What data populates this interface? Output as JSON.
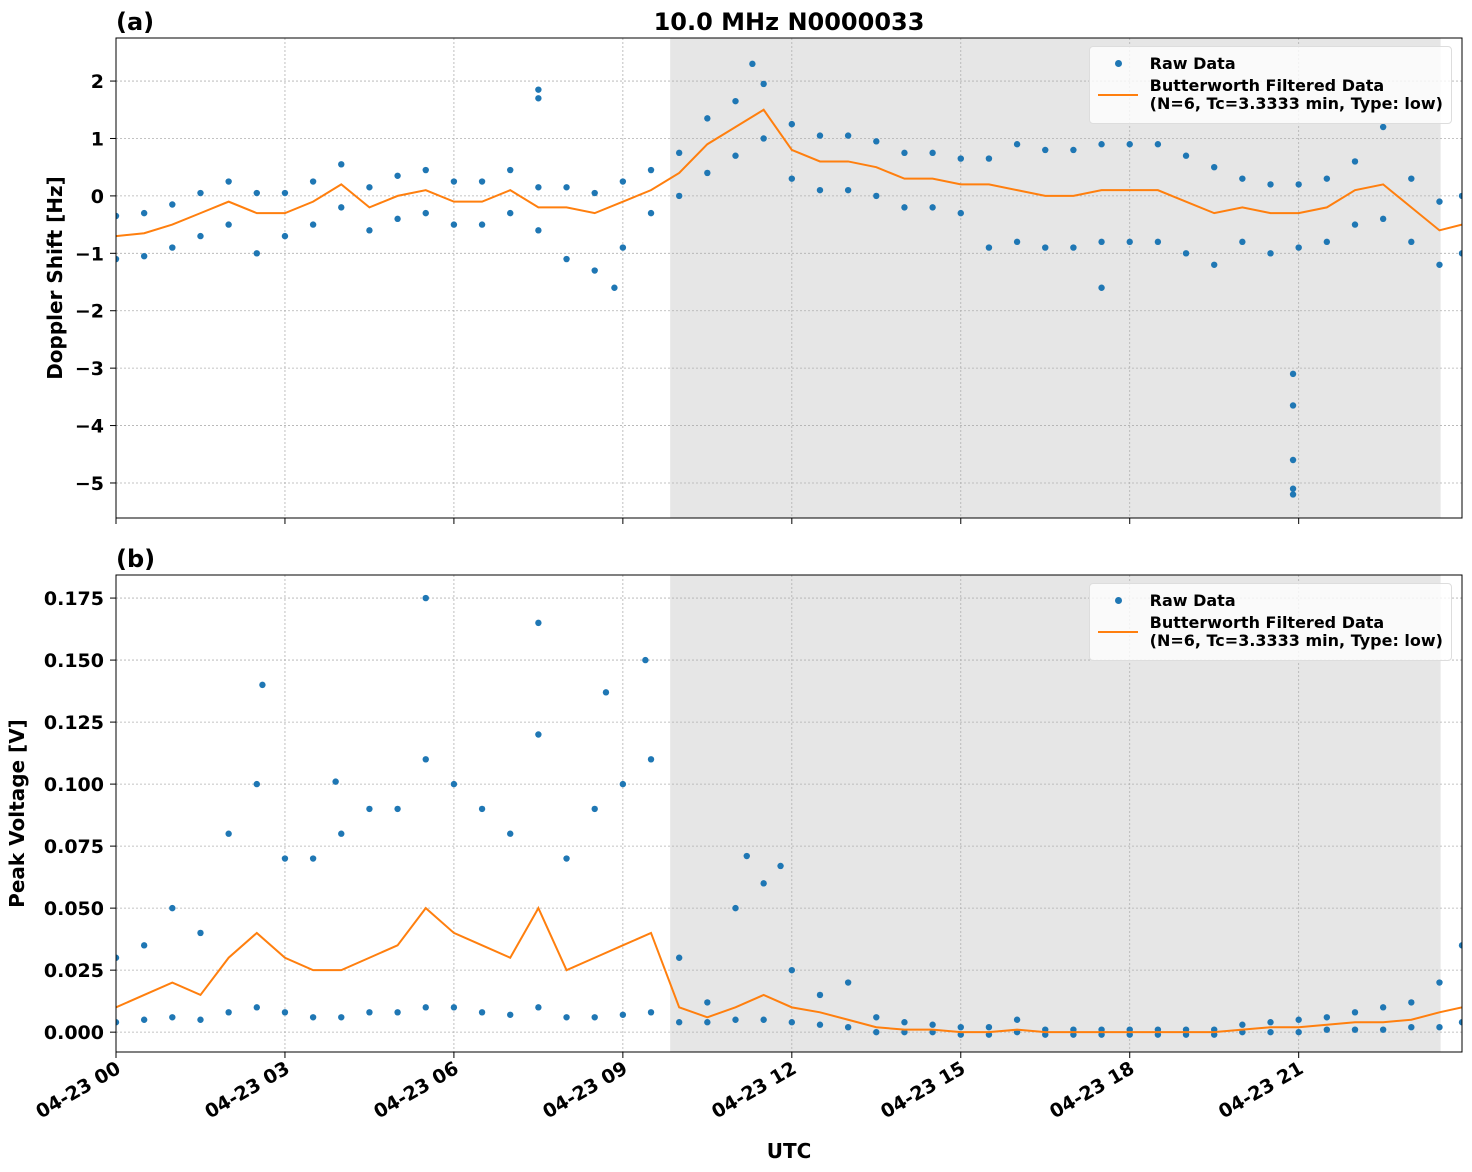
{
  "chart_data": [
    {
      "type": "line",
      "title": "10.0 MHz N0000033",
      "panel_label": "(a)",
      "ylabel": "Doppler Shift [Hz]",
      "xlim": [
        0,
        23.9
      ],
      "ylim": [
        -5.61,
        2.75
      ],
      "yticks": [
        {
          "value": -5,
          "label": "−5"
        },
        {
          "value": -4,
          "label": "−4"
        },
        {
          "value": -3,
          "label": "−3"
        },
        {
          "value": -2,
          "label": "−2"
        },
        {
          "value": -1,
          "label": "−1"
        },
        0,
        1,
        2
      ],
      "grid": true,
      "shaded_span": [
        9.84,
        23.52
      ],
      "legend": "upper right",
      "series": [
        {
          "name": "Raw Data",
          "color": "#1f77b4",
          "mode": "markers",
          "x": [
            0,
            0.5,
            1,
            1.5,
            2,
            2.5,
            3,
            3.5,
            4,
            4.5,
            5,
            5.5,
            6,
            6.5,
            7,
            7.5,
            8,
            8.5,
            9,
            9.5,
            10,
            10.5,
            11,
            11.5,
            12,
            12.5,
            13,
            13.5,
            14,
            14.5,
            15,
            15.5,
            16,
            16.5,
            17,
            17.5,
            18,
            18.5,
            19,
            19.5,
            20,
            20.5,
            21,
            21.5,
            22,
            22.5,
            23,
            23.5,
            23.9,
            0,
            0.5,
            1,
            1.5,
            2,
            2.5,
            3,
            3.5,
            4,
            4.5,
            5,
            5.5,
            6,
            6.5,
            7,
            7.5,
            8,
            8.5,
            9,
            9.5,
            10,
            10.5,
            11,
            11.5,
            12,
            12.5,
            13,
            13.5,
            14,
            14.5,
            15,
            15.5,
            16,
            16.5,
            17,
            17.5,
            18,
            18.5,
            19,
            19.5,
            20,
            20.5,
            21,
            21.5,
            22,
            22.5,
            23,
            23.5,
            23.9,
            7.5,
            7.5,
            8.85,
            20.9,
            20.9,
            20.9,
            20.9,
            20.9,
            11.3,
            17.5
          ],
          "values": [
            -0.35,
            -0.3,
            -0.15,
            0.05,
            0.25,
            0.05,
            0.05,
            0.25,
            0.55,
            0.15,
            0.35,
            0.45,
            0.25,
            0.25,
            0.45,
            0.15,
            0.15,
            0.05,
            0.25,
            0.45,
            0.75,
            1.35,
            1.65,
            1.95,
            1.25,
            1.05,
            1.05,
            0.95,
            0.75,
            0.75,
            0.65,
            0.65,
            0.9,
            0.8,
            0.8,
            0.9,
            0.9,
            0.9,
            0.7,
            0.5,
            0.3,
            0.2,
            0.2,
            0.3,
            0.6,
            1.2,
            0.3,
            -0.1,
            0,
            -1.1,
            -1.05,
            -0.9,
            -0.7,
            -0.5,
            -1.0,
            -0.7,
            -0.5,
            -0.2,
            -0.6,
            -0.4,
            -0.3,
            -0.5,
            -0.5,
            -0.3,
            -0.6,
            -1.1,
            -1.3,
            -0.9,
            -0.3,
            0,
            0.4,
            0.7,
            1.0,
            0.3,
            0.1,
            0.1,
            0,
            -0.2,
            -0.2,
            -0.3,
            -0.9,
            -0.8,
            -0.9,
            -0.9,
            -0.8,
            -0.8,
            -0.8,
            -1.0,
            -1.2,
            -0.8,
            -1.0,
            -0.9,
            -0.8,
            -0.5,
            -0.4,
            -0.8,
            -1.2,
            -1.0,
            1.85,
            1.7,
            -1.6,
            -5.2,
            -5.1,
            -4.6,
            -3.65,
            -3.1,
            2.3,
            -1.6
          ]
        },
        {
          "name": "Butterworth Filtered Data\n(N=6, Tc=3.3333 min, Type: low)",
          "color": "#ff7f0e",
          "mode": "lines",
          "x": [
            0,
            0.5,
            1,
            1.5,
            2,
            2.5,
            3,
            3.5,
            4,
            4.5,
            5,
            5.5,
            6,
            6.5,
            7,
            7.5,
            8,
            8.5,
            9,
            9.5,
            10,
            10.5,
            11,
            11.5,
            12,
            12.5,
            13,
            13.5,
            14,
            14.5,
            15,
            15.5,
            16,
            16.5,
            17,
            17.5,
            18,
            18.5,
            19,
            19.5,
            20,
            20.5,
            21,
            21.5,
            22,
            22.5,
            23,
            23.5,
            23.9
          ],
          "values": [
            -0.7,
            -0.65,
            -0.5,
            -0.3,
            -0.1,
            -0.3,
            -0.3,
            -0.1,
            0.2,
            -0.2,
            0,
            0.1,
            -0.1,
            -0.1,
            0.1,
            -0.2,
            -0.2,
            -0.3,
            -0.1,
            0.1,
            0.4,
            0.9,
            1.2,
            1.5,
            0.8,
            0.6,
            0.6,
            0.5,
            0.3,
            0.3,
            0.2,
            0.2,
            0.1,
            0,
            0,
            0.1,
            0.1,
            0.1,
            -0.1,
            -0.3,
            -0.2,
            -0.3,
            -0.3,
            -0.2,
            0.1,
            0.2,
            -0.2,
            -0.6,
            -0.5
          ]
        }
      ]
    },
    {
      "type": "line",
      "panel_label": "(b)",
      "ylabel": "Peak Voltage [V]",
      "xlabel": "UTC",
      "xlim": [
        0,
        23.9
      ],
      "ylim": [
        -0.008,
        0.1843
      ],
      "xticks": [
        {
          "value": 0,
          "label": "04-23 00"
        },
        {
          "value": 3,
          "label": "04-23 03"
        },
        {
          "value": 6,
          "label": "04-23 06"
        },
        {
          "value": 9,
          "label": "04-23 09"
        },
        {
          "value": 12,
          "label": "04-23 12"
        },
        {
          "value": 15,
          "label": "04-23 15"
        },
        {
          "value": 18,
          "label": "04-23 18"
        },
        {
          "value": 21,
          "label": "04-23 21"
        }
      ],
      "yticks": [
        {
          "value": 0,
          "label": "0.000"
        },
        {
          "value": 0.025,
          "label": "0.025"
        },
        {
          "value": 0.05,
          "label": "0.050"
        },
        {
          "value": 0.075,
          "label": "0.075"
        },
        {
          "value": 0.1,
          "label": "0.100"
        },
        {
          "value": 0.125,
          "label": "0.125"
        },
        {
          "value": 0.15,
          "label": "0.150"
        },
        {
          "value": 0.175,
          "label": "0.175"
        }
      ],
      "grid": true,
      "shaded_span": [
        9.84,
        23.52
      ],
      "legend": "upper right",
      "series": [
        {
          "name": "Raw Data",
          "color": "#1f77b4",
          "mode": "markers",
          "x": [
            0,
            0.5,
            1,
            1.5,
            2,
            2.5,
            3,
            3.5,
            4,
            4.5,
            5,
            5.5,
            6,
            6.5,
            7,
            7.5,
            8,
            8.5,
            9,
            9.5,
            10,
            10.5,
            11,
            11.5,
            12,
            12.5,
            13,
            13.5,
            14,
            14.5,
            15,
            15.5,
            16,
            16.5,
            17,
            17.5,
            18,
            18.5,
            19,
            19.5,
            20,
            20.5,
            21,
            21.5,
            22,
            22.5,
            23,
            23.5,
            23.9,
            0,
            0.5,
            1,
            1.5,
            2,
            2.5,
            3,
            3.5,
            4,
            4.5,
            5,
            5.5,
            6,
            6.5,
            7,
            7.5,
            8,
            8.5,
            9,
            9.5,
            10,
            10.5,
            11,
            11.5,
            12,
            12.5,
            13,
            13.5,
            14,
            14.5,
            15,
            15.5,
            16,
            16.5,
            17,
            17.5,
            18,
            18.5,
            19,
            19.5,
            20,
            20.5,
            21,
            21.5,
            22,
            22.5,
            23,
            23.5,
            23.9,
            2.6,
            5.5,
            7.5,
            8.7,
            9.4,
            11.2,
            11.8,
            3.9
          ],
          "values": [
            0.03,
            0.035,
            0.05,
            0.04,
            0.08,
            0.1,
            0.07,
            0.07,
            0.08,
            0.09,
            0.09,
            0.11,
            0.1,
            0.09,
            0.08,
            0.12,
            0.07,
            0.09,
            0.1,
            0.11,
            0.03,
            0.012,
            0.05,
            0.06,
            0.025,
            0.015,
            0.02,
            0.006,
            0.004,
            0.003,
            0.002,
            0.002,
            0.005,
            0.001,
            0.001,
            0.001,
            0.001,
            0.001,
            0.001,
            0.001,
            0.003,
            0.004,
            0.005,
            0.006,
            0.008,
            0.01,
            0.012,
            0.02,
            0.035,
            0.004,
            0.005,
            0.006,
            0.005,
            0.008,
            0.01,
            0.008,
            0.006,
            0.006,
            0.008,
            0.008,
            0.01,
            0.01,
            0.008,
            0.007,
            0.01,
            0.006,
            0.006,
            0.007,
            0.008,
            0.004,
            0.004,
            0.005,
            0.005,
            0.004,
            0.003,
            0.002,
            0,
            0,
            0,
            -0.001,
            -0.001,
            0,
            -0.001,
            -0.001,
            -0.001,
            -0.001,
            -0.001,
            -0.001,
            -0.001,
            0,
            0,
            0,
            0.001,
            0.001,
            0.001,
            0.002,
            0.002,
            0.004,
            0.14,
            0.175,
            0.165,
            0.137,
            0.15,
            0.071,
            0.067,
            0.101
          ]
        },
        {
          "name": "Butterworth Filtered Data\n(N=6, Tc=3.3333 min, Type: low)",
          "color": "#ff7f0e",
          "mode": "lines",
          "x": [
            0,
            0.5,
            1,
            1.5,
            2,
            2.5,
            3,
            3.5,
            4,
            4.5,
            5,
            5.5,
            6,
            6.5,
            7,
            7.5,
            8,
            8.5,
            9,
            9.5,
            10,
            10.5,
            11,
            11.5,
            12,
            12.5,
            13,
            13.5,
            14,
            14.5,
            15,
            15.5,
            16,
            16.5,
            17,
            17.5,
            18,
            18.5,
            19,
            19.5,
            20,
            20.5,
            21,
            21.5,
            22,
            22.5,
            23,
            23.5,
            23.9
          ],
          "values": [
            0.01,
            0.015,
            0.02,
            0.015,
            0.03,
            0.04,
            0.03,
            0.025,
            0.025,
            0.03,
            0.035,
            0.05,
            0.04,
            0.035,
            0.03,
            0.05,
            0.025,
            0.03,
            0.035,
            0.04,
            0.01,
            0.006,
            0.01,
            0.015,
            0.01,
            0.008,
            0.005,
            0.002,
            0.001,
            0.001,
            0,
            0,
            0.001,
            0,
            0,
            0,
            0,
            0,
            0,
            0,
            0.001,
            0.002,
            0.002,
            0.003,
            0.004,
            0.004,
            0.005,
            0.008,
            0.01
          ]
        }
      ]
    }
  ]
}
